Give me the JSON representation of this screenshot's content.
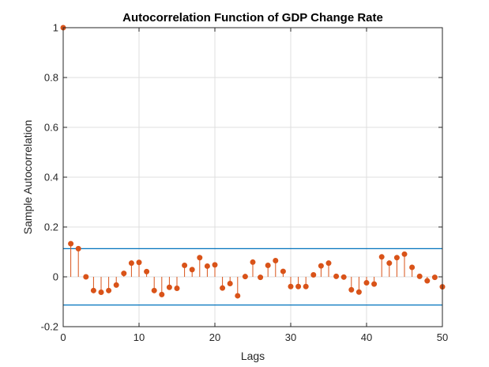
{
  "chart_data": {
    "type": "stem",
    "title": "Autocorrelation Function of GDP Change Rate",
    "xlabel": "Lags",
    "ylabel": "Sample Autocorrelation",
    "xlim": [
      0,
      50
    ],
    "ylim": [
      -0.2,
      1
    ],
    "xticks": [
      "0",
      "10",
      "20",
      "30",
      "40",
      "50"
    ],
    "yticks": [
      "-0.2",
      "0",
      "0.2",
      "0.4",
      "0.6",
      "0.8",
      "1"
    ],
    "grid": true,
    "bounds": [
      0.113,
      -0.113
    ],
    "series": [
      {
        "x": [
          0,
          1,
          2,
          3,
          4,
          5,
          6,
          7,
          8,
          9,
          10,
          11,
          12,
          13,
          14,
          15,
          16,
          17,
          18,
          19,
          20,
          21,
          22,
          23,
          24,
          25,
          26,
          27,
          28,
          29,
          30,
          31,
          32,
          33,
          34,
          35,
          36,
          37,
          38,
          39,
          40,
          41,
          42,
          43,
          44,
          45,
          46,
          47,
          48,
          49,
          50
        ],
        "values": [
          1,
          0.133,
          0.113,
          0,
          -0.055,
          -0.062,
          -0.055,
          -0.033,
          0.014,
          0.055,
          0.058,
          0.021,
          -0.055,
          -0.071,
          -0.042,
          -0.046,
          0.046,
          0.029,
          0.077,
          0.043,
          0.048,
          -0.045,
          -0.027,
          -0.076,
          0.001,
          0.059,
          -0.002,
          0.046,
          0.065,
          0.022,
          -0.039,
          -0.039,
          -0.039,
          0.008,
          0.044,
          0.055,
          0.002,
          -0.001,
          -0.052,
          -0.061,
          -0.024,
          -0.029,
          0.08,
          0.055,
          0.077,
          0.091,
          0.038,
          0.002,
          -0.016,
          -0.002,
          -0.04
        ]
      }
    ]
  },
  "colors": {
    "stem": "#D95319",
    "bounds": "#0072BD",
    "axis": "#262626",
    "grid": "#DFDFDF"
  }
}
